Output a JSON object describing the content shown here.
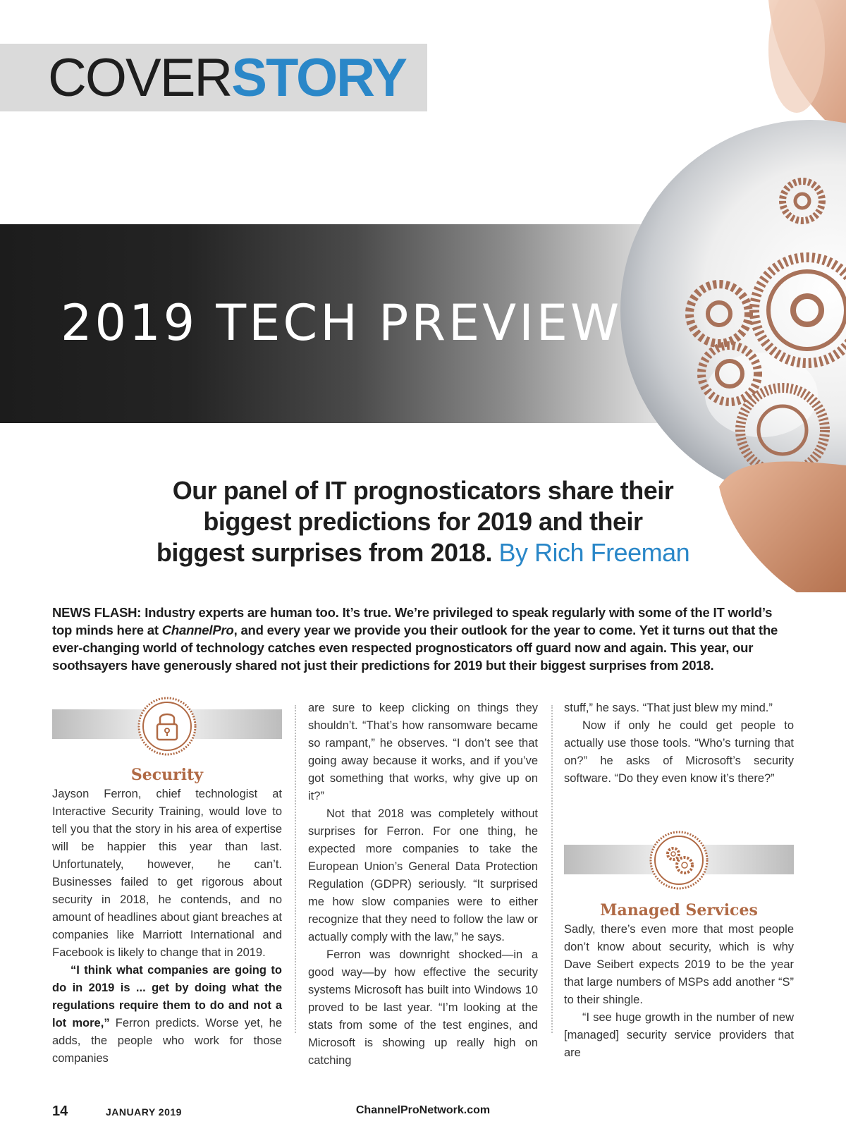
{
  "header": {
    "cover_word_a": "COVER",
    "cover_word_b": "STORY"
  },
  "title": "2019 TECH PREVIEW:",
  "deck": {
    "line1": "Our panel of IT prognosticators share their",
    "line2": "biggest predictions for 2019 and their",
    "line3": "biggest surprises from 2018.",
    "byline": "By Rich Freeman"
  },
  "lead": {
    "part1": "NEWS FLASH: Industry experts are human too. It’s true. We’re privileged to speak regularly with some of the IT world’s top minds here at ",
    "publication": "ChannelPro",
    "part2": ", and every year we provide you their outlook for the year to come. Yet it turns out that the ever-changing world of technology catches even respected prognosticators off guard now and again. This year, our soothsayers have generously shared not just their predictions for 2019 but their biggest surprises from 2018."
  },
  "sections": {
    "security": {
      "heading": "Security",
      "icon": "padlock-icon",
      "p1": "Jayson Ferron, chief technologist at Interactive Security Training, would love to tell you that the story in his area of expertise will be happier this year than last. Unfortunately, however, he can’t. Businesses failed to get rigorous about security in 2018, he contends, and no amount of headlines about giant breaches at companies like Marriott International and Facebook is likely to change that in 2019.",
      "p2_quote": "“I think what companies are going to do in 2019 is ... get by doing what the regulations require them to do and not a lot more,”",
      "p2_rest": " Ferron predicts. Worse yet, he adds, the people who work for those companies"
    },
    "middle": {
      "p1": "are sure to keep clicking on things they shouldn’t. “That’s how ransomware became so rampant,” he observes. “I don’t see that going away because it works, and if you’ve got something that works, why give up on it?”",
      "p2": "Not that 2018 was completely without surprises for Ferron. For one thing, he expected more companies to take the European Union’s General Data Protection Regulation (GDPR) seriously. “It surprised me how slow companies were to either recognize that they need to follow the law or actually comply with the law,” he says.",
      "p3": "Ferron was downright shocked—in a good way—by how effective the security systems Microsoft has built into Windows 10 proved to be last year. “I’m looking at the stats from some of the test engines, and Microsoft is showing up really high on catching"
    },
    "right": {
      "p1": "stuff,” he says. “That just blew my mind.”",
      "p2": "Now if only he could get people to actually use those tools. “Who’s turning that on?” he asks of Microsoft’s security software. “Do they even know it’s there?”"
    },
    "managed": {
      "heading": "Managed Services",
      "icon": "gears-icon",
      "p1": "Sadly, there’s even more that most people don’t know about security, which is why Dave Seibert expects 2019 to be the year that large numbers of MSPs add another “S” to their shingle.",
      "p2": "“I see huge growth in the number of new [managed] security service providers that are"
    }
  },
  "footer": {
    "page_number": "14",
    "issue": "JANUARY 2019",
    "site": "ChannelProNetwork.com"
  },
  "colors": {
    "accent_blue": "#2a87c8",
    "section_copper": "#b06a45"
  }
}
